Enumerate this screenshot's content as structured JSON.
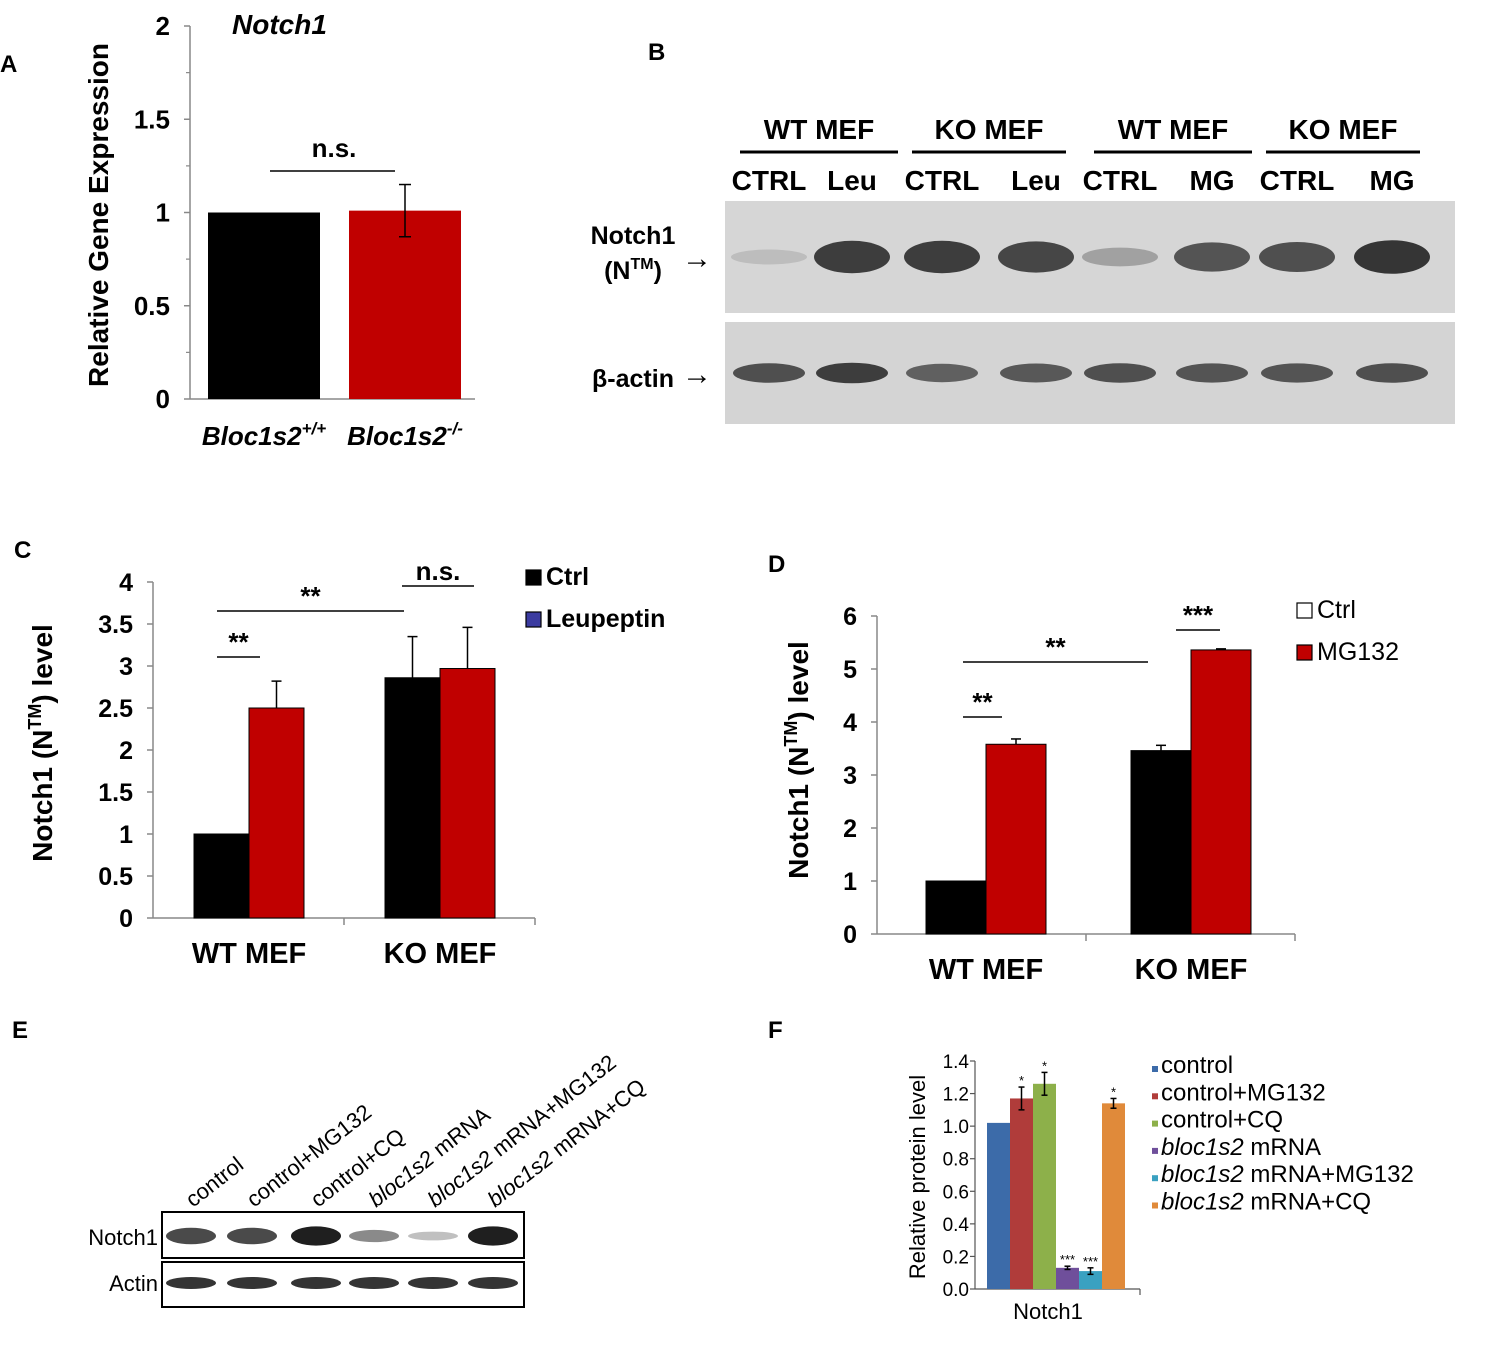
{
  "panels": {
    "A": {
      "letter": "A"
    },
    "B": {
      "letter": "B"
    },
    "C": {
      "letter": "C"
    },
    "D": {
      "letter": "D"
    },
    "E": {
      "letter": "E"
    },
    "F": {
      "letter": "F"
    }
  },
  "colors": {
    "black": "#000000",
    "red": "#c00000",
    "blue_bar": "#3c6ba9",
    "red_bar": "#b03c3a",
    "green_bar": "#8db04a",
    "purple_bar": "#6f4f9b",
    "cyan_bar": "#3aa1c1",
    "orange_bar": "#e08a3a"
  },
  "blot_b": {
    "groups": [
      "WT MEF",
      "KO MEF",
      "WT MEF",
      "KO MEF"
    ],
    "lanes": [
      "CTRL",
      "Leu",
      "CTRL",
      "Leu",
      "CTRL",
      "MG",
      "CTRL",
      "MG"
    ],
    "notch_label": "Notch1",
    "notch_sub_open": "(N",
    "notch_sub_sup": "TM",
    "notch_sub_close": ")",
    "actin_label": "β-actin",
    "arrow": "→",
    "notch_intensity": [
      0.12,
      0.85,
      0.85,
      0.8,
      0.28,
      0.72,
      0.75,
      0.9
    ],
    "actin_intensity": [
      0.75,
      0.85,
      0.65,
      0.7,
      0.75,
      0.72,
      0.72,
      0.75
    ]
  },
  "blot_e": {
    "lanes": [
      "control",
      "control+MG132",
      "control+CQ",
      "bloc1s2 mRNA",
      "bloc1s2 mRNA+MG132",
      "bloc1s2 mRNA+CQ"
    ],
    "lanes_italic": [
      "",
      "",
      "",
      "bloc1s2",
      "bloc1s2",
      "bloc1s2"
    ],
    "lanes_rest": [
      "control",
      "control+MG132",
      "control+CQ",
      " mRNA",
      " mRNA+MG132",
      " mRNA+CQ"
    ],
    "notch_label": "Notch1",
    "actin_label": "Actin",
    "notch_intensity": [
      0.75,
      0.75,
      0.95,
      0.45,
      0.2,
      0.95
    ],
    "actin_intensity": [
      0.85,
      0.85,
      0.85,
      0.85,
      0.85,
      0.85
    ]
  },
  "chart_data": [
    {
      "panel": "A",
      "type": "bar",
      "title": "Notch1",
      "ylabel": "Relative Gene Expression",
      "categories": [
        "Bloc1s2+/+",
        "Bloc1s2-/-"
      ],
      "category_base": [
        "Bloc1s2",
        "Bloc1s2"
      ],
      "category_sup": [
        "+/+",
        "-/-"
      ],
      "values": [
        1.0,
        1.01
      ],
      "errors": [
        0.0,
        0.14
      ],
      "ylim": [
        0,
        2
      ],
      "yticks": [
        "0",
        "0.5",
        "1",
        "1.5",
        "2"
      ],
      "annotation": "n.s."
    },
    {
      "panel": "C",
      "type": "bar",
      "ylabel": "Notch1 (NTM) level",
      "ylabel_parts": [
        "Notch1 (N",
        "TM",
        ") level"
      ],
      "categories": [
        "WT MEF",
        "KO MEF"
      ],
      "series": [
        {
          "name": "Ctrl",
          "values": [
            1.0,
            2.86
          ],
          "errors": [
            0,
            0.49
          ]
        },
        {
          "name": "Leupeptin",
          "values": [
            2.5,
            2.97
          ],
          "errors": [
            0.32,
            0.49
          ]
        }
      ],
      "ylim": [
        0,
        4
      ],
      "yticks": [
        "0",
        "0.5",
        "1",
        "1.5",
        "2",
        "2.5",
        "3",
        "3.5",
        "4"
      ],
      "annotations": [
        "**",
        "**",
        "n.s."
      ],
      "legend": "right"
    },
    {
      "panel": "D",
      "type": "bar",
      "ylabel": "Notch1 (NTM) level",
      "ylabel_parts": [
        "Notch1 (N",
        "TM",
        ") level"
      ],
      "categories": [
        "WT MEF",
        "KO MEF"
      ],
      "series": [
        {
          "name": "Ctrl",
          "values": [
            1.0,
            3.46
          ],
          "errors": [
            0,
            0.1
          ]
        },
        {
          "name": "MG132",
          "values": [
            3.58,
            5.36
          ],
          "errors": [
            0.1,
            0.02
          ]
        }
      ],
      "ylim": [
        0,
        6
      ],
      "yticks": [
        "0",
        "1",
        "2",
        "3",
        "4",
        "5",
        "6"
      ],
      "annotations": [
        "**",
        "**",
        "***"
      ],
      "legend": "right"
    },
    {
      "panel": "F",
      "type": "bar",
      "ylabel": "Relative protein level",
      "categories": [
        "Notch1"
      ],
      "series": [
        {
          "name": "control",
          "value": 1.02,
          "error": 0,
          "sig": ""
        },
        {
          "name": "control+MG132",
          "value": 1.17,
          "error": 0.07,
          "sig": "*"
        },
        {
          "name": "control+CQ",
          "value": 1.26,
          "error": 0.07,
          "sig": "*"
        },
        {
          "name": "bloc1s2 mRNA",
          "value": 0.13,
          "error": 0.01,
          "sig": "***"
        },
        {
          "name": "bloc1s2 mRNA+MG132",
          "value": 0.11,
          "error": 0.02,
          "sig": "***"
        },
        {
          "name": "bloc1s2 mRNA+CQ",
          "value": 1.14,
          "error": 0.03,
          "sig": "*"
        }
      ],
      "legend_italic": [
        "",
        "",
        "",
        "bloc1s2",
        "bloc1s2",
        "bloc1s2"
      ],
      "legend_rest": [
        "control",
        "control+MG132",
        "control+CQ",
        " mRNA",
        " mRNA+MG132",
        " mRNA+CQ"
      ],
      "ylim": [
        0,
        1.4
      ],
      "yticks": [
        "0.0",
        "0.2",
        "0.4",
        "0.6",
        "0.8",
        "1.0",
        "1.2",
        "1.4"
      ],
      "legend": "right"
    }
  ]
}
